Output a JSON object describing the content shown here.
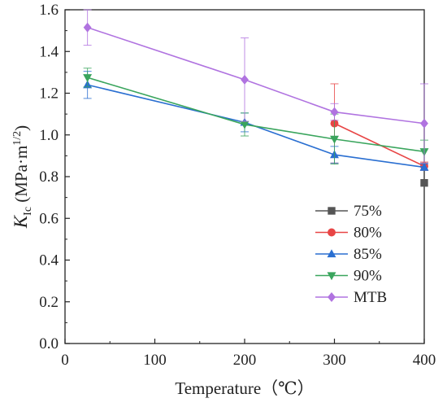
{
  "chart_data": {
    "type": "line",
    "title": "",
    "xlabel": "Temperature（℃）",
    "ylabel": {
      "main": "K",
      "sub": "Ic",
      "unit_open": " (MPa·m",
      "unit_sup": "1/2",
      "unit_close": ")"
    },
    "xlim": [
      0,
      400
    ],
    "ylim": [
      0.0,
      1.6
    ],
    "xticks": [
      0,
      100,
      200,
      300,
      400
    ],
    "xtick_labels": [
      "0",
      "100",
      "200",
      "300",
      "400"
    ],
    "yticks": [
      0.0,
      0.2,
      0.4,
      0.6,
      0.8,
      1.0,
      1.2,
      1.4,
      1.6
    ],
    "ytick_labels": [
      "0.0",
      "0.2",
      "0.4",
      "0.6",
      "0.8",
      "1.0",
      "1.2",
      "1.4",
      "1.6"
    ],
    "grid": false,
    "legend_position": "lower-right",
    "series": [
      {
        "name": "75%",
        "color": "#555555",
        "marker": "square",
        "points": [
          {
            "x": 400,
            "y": 0.77
          }
        ]
      },
      {
        "name": "80%",
        "color": "#e84545",
        "marker": "circle",
        "points": [
          {
            "x": 300,
            "y": 1.055,
            "err": 0.19
          },
          {
            "x": 400,
            "y": 0.85,
            "err": 0.02
          }
        ]
      },
      {
        "name": "85%",
        "color": "#2a6fd1",
        "marker": "triangle-up",
        "points": [
          {
            "x": 25,
            "y": 1.24,
            "err": 0.065
          },
          {
            "x": 200,
            "y": 1.06,
            "err": 0.045
          },
          {
            "x": 300,
            "y": 0.905,
            "err": 0.04
          },
          {
            "x": 400,
            "y": 0.845,
            "err": 0.015
          }
        ]
      },
      {
        "name": "90%",
        "color": "#3aa55d",
        "marker": "triangle-down",
        "points": [
          {
            "x": 25,
            "y": 1.275,
            "err": 0.045
          },
          {
            "x": 200,
            "y": 1.05,
            "err": 0.055
          },
          {
            "x": 300,
            "y": 0.98,
            "err": 0.12
          },
          {
            "x": 400,
            "y": 0.92,
            "err": 0.055
          }
        ]
      },
      {
        "name": "MTB",
        "color": "#b073e0",
        "marker": "diamond",
        "points": [
          {
            "x": 25,
            "y": 1.515,
            "err": 0.085
          },
          {
            "x": 200,
            "y": 1.265,
            "err": 0.2
          },
          {
            "x": 300,
            "y": 1.11,
            "err": 0.04
          },
          {
            "x": 400,
            "y": 1.055,
            "err": 0.19
          }
        ]
      }
    ]
  }
}
